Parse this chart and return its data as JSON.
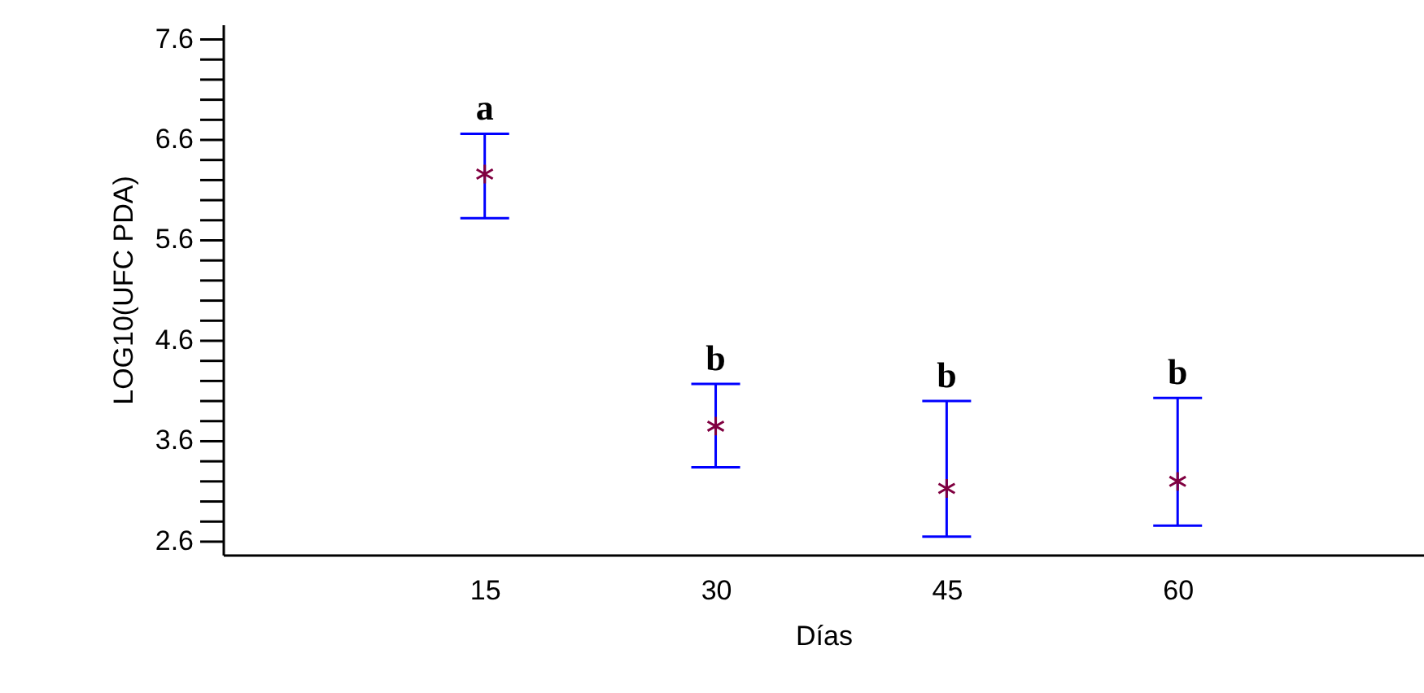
{
  "chart_data": {
    "type": "scatter",
    "xlabel": "Días",
    "ylabel": "LOG10(UFC PDA)",
    "x": [
      15,
      30,
      45,
      60
    ],
    "series": [
      {
        "color": "#800040",
        "values": [
          6.26,
          3.75,
          3.13,
          3.2
        ],
        "errors": [
          [
            5.82,
            6.66
          ],
          [
            3.34,
            4.17
          ],
          [
            2.65,
            4.0
          ],
          [
            2.76,
            4.03
          ]
        ]
      }
    ],
    "marker": "cross",
    "xlim": [
      -2,
      76
    ],
    "xticks": [
      15,
      30,
      45,
      60
    ],
    "ylim": [
      2.47,
      7.75
    ],
    "yticks": [
      2.6,
      {
        "value": 2.8,
        "label": null
      },
      {
        "value": 3.0,
        "label": null
      },
      {
        "value": 3.2,
        "label": null
      },
      {
        "value": 3.4,
        "label": null
      },
      3.6,
      {
        "value": 3.8,
        "label": null
      },
      {
        "value": 4.0,
        "label": null
      },
      {
        "value": 4.2,
        "label": null
      },
      {
        "value": 4.4,
        "label": null
      },
      4.6,
      {
        "value": 4.8,
        "label": null
      },
      {
        "value": 5.0,
        "label": null
      },
      {
        "value": 5.2,
        "label": null
      },
      {
        "value": 5.4,
        "label": null
      },
      5.6,
      {
        "value": 5.8,
        "label": null
      },
      {
        "value": 6.0,
        "label": null
      },
      {
        "value": 6.2,
        "label": null
      },
      {
        "value": 6.4,
        "label": null
      },
      6.6,
      {
        "value": 6.8,
        "label": null
      },
      {
        "value": 7.0,
        "label": null
      },
      {
        "value": 7.2,
        "label": null
      },
      {
        "value": 7.4,
        "label": null
      },
      7.6
    ],
    "annotations": [
      {
        "text": "a",
        "x": 15,
        "y": 6.72
      },
      {
        "text": "b",
        "x": 30,
        "y": 4.23
      },
      {
        "text": "b",
        "x": 45,
        "y": 4.06
      },
      {
        "text": "b",
        "x": 60,
        "y": 4.09
      }
    ],
    "grid": false
  }
}
